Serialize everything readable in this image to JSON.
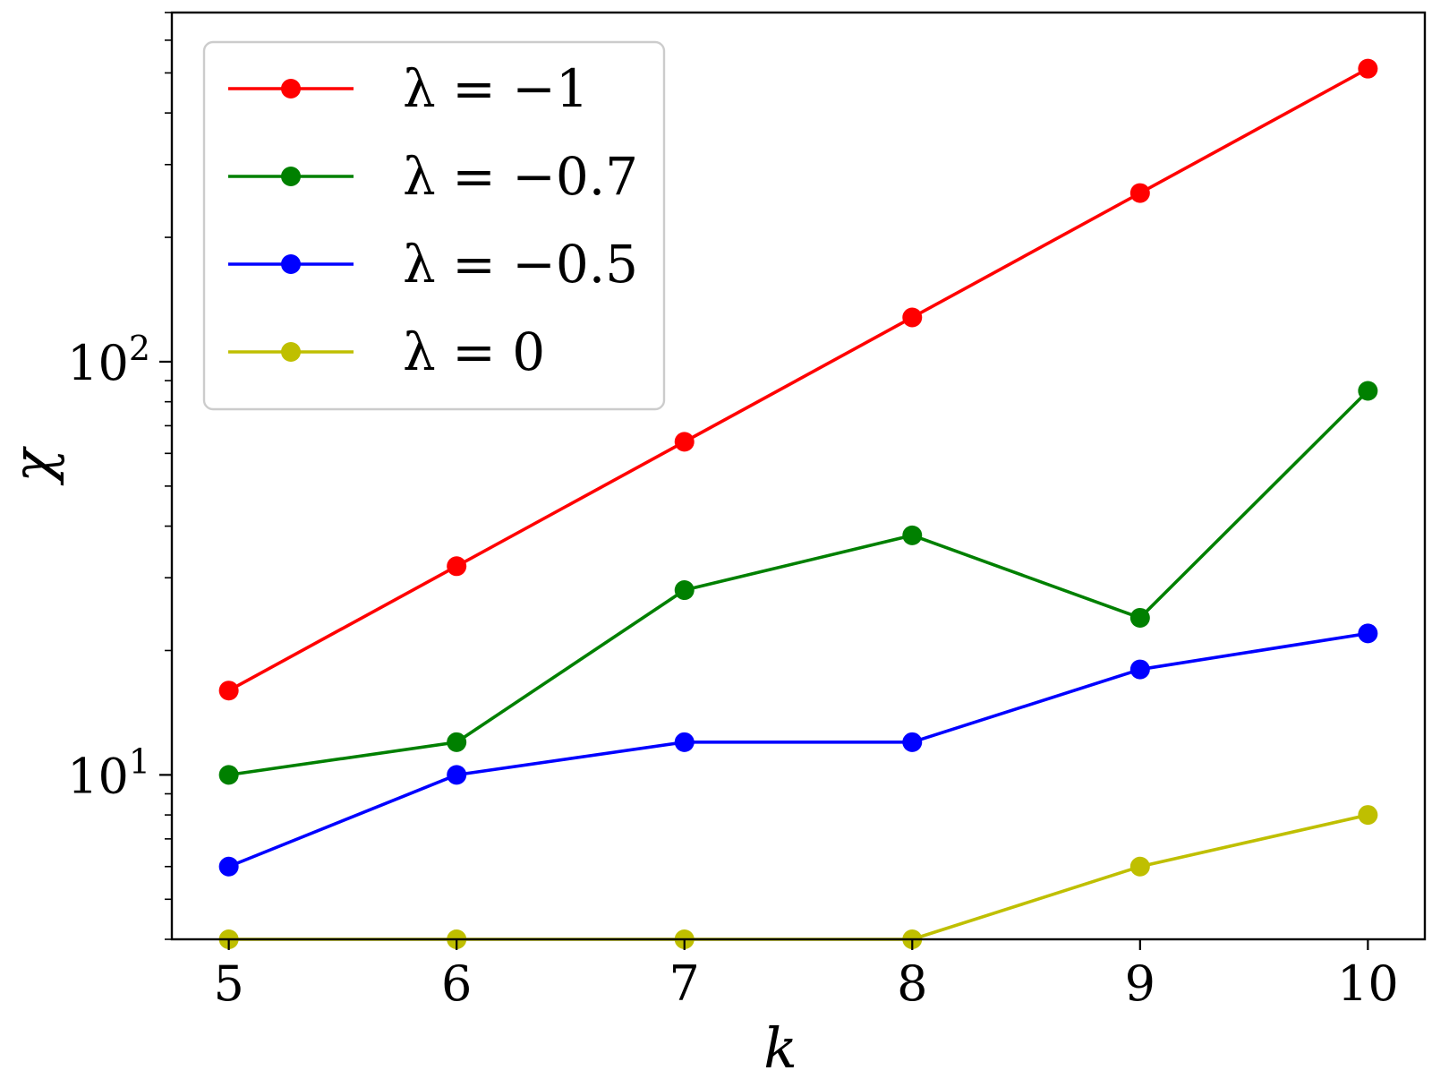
{
  "chart_data": {
    "type": "line",
    "xlabel": "k",
    "ylabel": "χ",
    "yscale": "log",
    "xlim": [
      4.75,
      10.25
    ],
    "ylim": [
      4.0,
      700
    ],
    "x": [
      5,
      6,
      7,
      8,
      9,
      10
    ],
    "xticks": [
      "5",
      "6",
      "7",
      "8",
      "9",
      "10"
    ],
    "yticks": [
      {
        "base": "10",
        "exp": "1",
        "value": 10
      },
      {
        "base": "10",
        "exp": "2",
        "value": 100
      }
    ],
    "grid": false,
    "legend_position": "top-left",
    "series": [
      {
        "name": "λ = −1",
        "color": "#ff0000",
        "values": [
          16,
          32,
          64,
          128,
          256,
          512
        ]
      },
      {
        "name": "λ = −0.7",
        "color": "#008000",
        "values": [
          10,
          12,
          28,
          38,
          24,
          85
        ]
      },
      {
        "name": "λ = −0.5",
        "color": "#0000ff",
        "values": [
          6,
          10,
          12,
          12,
          18,
          22
        ]
      },
      {
        "name": "λ = 0",
        "color": "#bfbf00",
        "values": [
          4,
          4,
          4,
          4,
          6,
          8
        ]
      }
    ]
  }
}
